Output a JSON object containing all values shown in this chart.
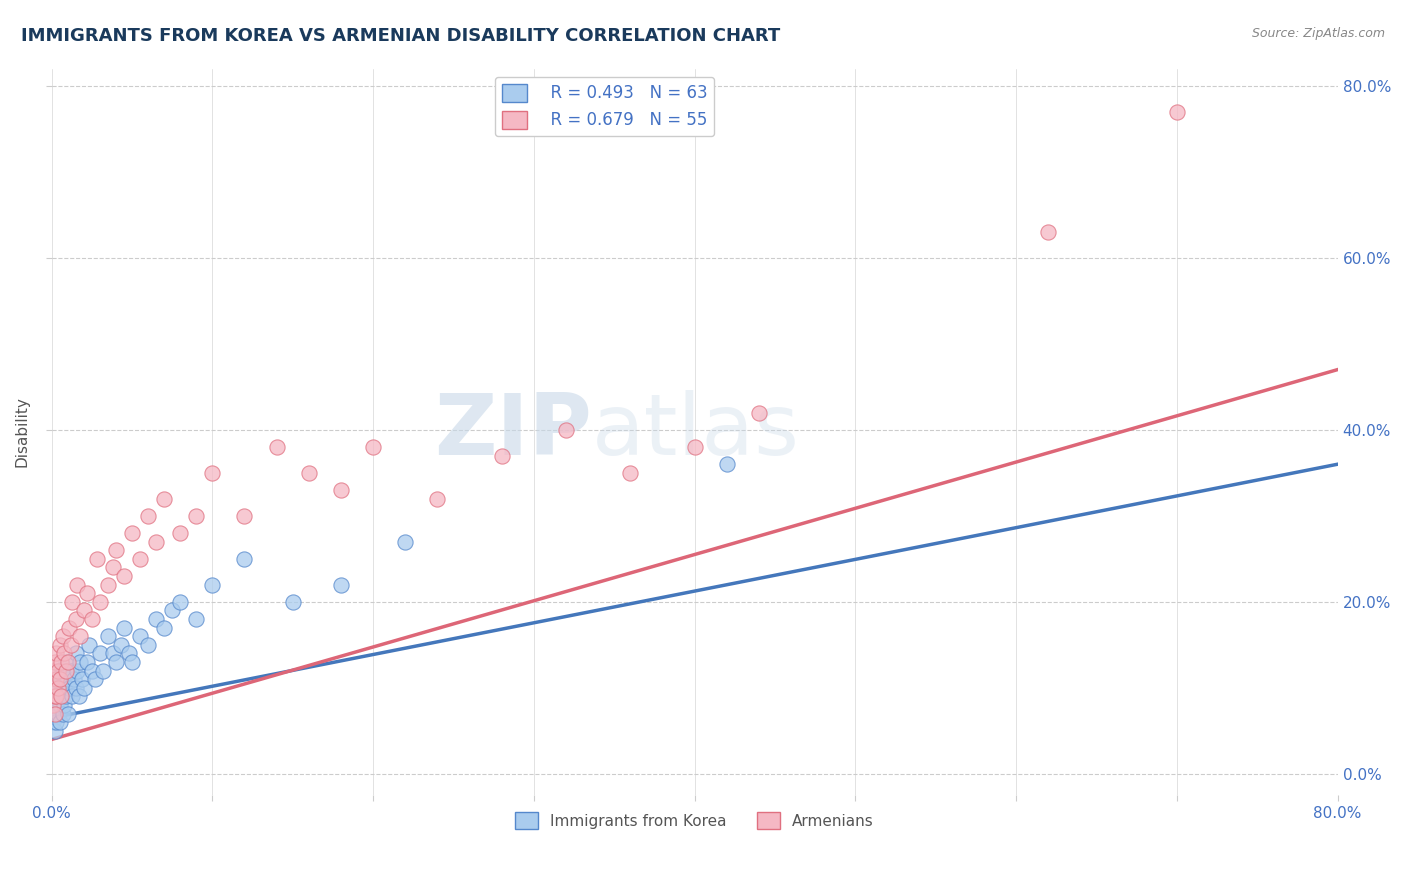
{
  "title": "IMMIGRANTS FROM KOREA VS ARMENIAN DISABILITY CORRELATION CHART",
  "source": "Source: ZipAtlas.com",
  "ylabel": "Disability",
  "watermark_zip": "ZIP",
  "watermark_atlas": "atlas",
  "legend_korea_r": "R = 0.493",
  "legend_korea_n": "N = 63",
  "legend_armenian_r": "R = 0.679",
  "legend_armenian_n": "N = 55",
  "legend_label_korea": "Immigrants from Korea",
  "legend_label_armenian": "Armenians",
  "korea_face_color": "#aaccee",
  "korea_edge_color": "#5588cc",
  "armenian_face_color": "#f5b8c4",
  "armenian_edge_color": "#e07080",
  "korea_line_color": "#4477bb",
  "armenian_line_color": "#dd6677",
  "title_color": "#1a3a5c",
  "axis_label_color": "#4472C4",
  "ylabel_color": "#555555",
  "grid_color": "#cccccc",
  "background_color": "#ffffff",
  "xlim": [
    0.0,
    0.8
  ],
  "ylim": [
    -0.025,
    0.82
  ],
  "x_tick_labels": [
    "0.0%",
    "",
    "",
    "",
    "",
    "",
    "",
    "",
    "80.0%"
  ],
  "y_tick_values": [
    0.0,
    0.2,
    0.4,
    0.6,
    0.8
  ],
  "y_tick_labels": [
    "0.0%",
    "20.0%",
    "40.0%",
    "60.0%",
    "80.0%"
  ],
  "korea_scatter_x": [
    0.001,
    0.001,
    0.001,
    0.001,
    0.002,
    0.002,
    0.002,
    0.003,
    0.003,
    0.003,
    0.004,
    0.004,
    0.004,
    0.005,
    0.005,
    0.005,
    0.006,
    0.006,
    0.007,
    0.007,
    0.008,
    0.008,
    0.009,
    0.009,
    0.01,
    0.01,
    0.011,
    0.012,
    0.013,
    0.014,
    0.015,
    0.015,
    0.016,
    0.017,
    0.018,
    0.019,
    0.02,
    0.022,
    0.023,
    0.025,
    0.027,
    0.03,
    0.032,
    0.035,
    0.038,
    0.04,
    0.043,
    0.045,
    0.048,
    0.05,
    0.055,
    0.06,
    0.065,
    0.07,
    0.075,
    0.08,
    0.09,
    0.1,
    0.12,
    0.15,
    0.18,
    0.22,
    0.42
  ],
  "korea_scatter_y": [
    0.08,
    0.1,
    0.06,
    0.09,
    0.07,
    0.11,
    0.05,
    0.08,
    0.1,
    0.06,
    0.09,
    0.07,
    0.12,
    0.08,
    0.1,
    0.06,
    0.09,
    0.11,
    0.07,
    0.12,
    0.08,
    0.1,
    0.09,
    0.13,
    0.07,
    0.11,
    0.1,
    0.12,
    0.09,
    0.11,
    0.1,
    0.14,
    0.12,
    0.09,
    0.13,
    0.11,
    0.1,
    0.13,
    0.15,
    0.12,
    0.11,
    0.14,
    0.12,
    0.16,
    0.14,
    0.13,
    0.15,
    0.17,
    0.14,
    0.13,
    0.16,
    0.15,
    0.18,
    0.17,
    0.19,
    0.2,
    0.18,
    0.22,
    0.25,
    0.2,
    0.22,
    0.27,
    0.36
  ],
  "armenian_scatter_x": [
    0.001,
    0.001,
    0.001,
    0.002,
    0.002,
    0.002,
    0.003,
    0.003,
    0.003,
    0.004,
    0.004,
    0.005,
    0.005,
    0.006,
    0.006,
    0.007,
    0.008,
    0.009,
    0.01,
    0.011,
    0.012,
    0.013,
    0.015,
    0.016,
    0.018,
    0.02,
    0.022,
    0.025,
    0.028,
    0.03,
    0.035,
    0.038,
    0.04,
    0.045,
    0.05,
    0.055,
    0.06,
    0.065,
    0.07,
    0.08,
    0.09,
    0.1,
    0.12,
    0.14,
    0.16,
    0.18,
    0.2,
    0.24,
    0.28,
    0.32,
    0.36,
    0.4,
    0.44,
    0.62,
    0.7
  ],
  "armenian_scatter_y": [
    0.1,
    0.12,
    0.08,
    0.09,
    0.13,
    0.07,
    0.11,
    0.09,
    0.14,
    0.1,
    0.12,
    0.11,
    0.15,
    0.13,
    0.09,
    0.16,
    0.14,
    0.12,
    0.13,
    0.17,
    0.15,
    0.2,
    0.18,
    0.22,
    0.16,
    0.19,
    0.21,
    0.18,
    0.25,
    0.2,
    0.22,
    0.24,
    0.26,
    0.23,
    0.28,
    0.25,
    0.3,
    0.27,
    0.32,
    0.28,
    0.3,
    0.35,
    0.3,
    0.38,
    0.35,
    0.33,
    0.38,
    0.32,
    0.37,
    0.4,
    0.35,
    0.38,
    0.42,
    0.63,
    0.77
  ],
  "korea_trend_x": [
    0.0,
    0.8
  ],
  "korea_trend_y": [
    0.065,
    0.36
  ],
  "armenian_trend_x": [
    0.0,
    0.8
  ],
  "armenian_trend_y": [
    0.04,
    0.47
  ]
}
